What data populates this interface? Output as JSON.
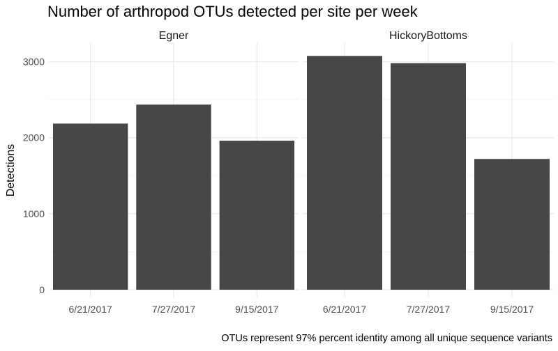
{
  "chart_data": {
    "type": "bar",
    "title": "Number of arthropod OTUs detected per site per week",
    "caption": "OTUs represent 97% percent identity among all unique sequence variants",
    "xlabel": "",
    "ylabel": "Detections",
    "ylim": [
      0,
      3250
    ],
    "yticks": [
      0,
      1000,
      2000,
      3000
    ],
    "grid": true,
    "bar_color": "#474747",
    "categories": [
      "6/21/2017",
      "7/27/2017",
      "9/15/2017"
    ],
    "facets": [
      {
        "name": "Egner",
        "values": [
          2185,
          2435,
          1960
        ]
      },
      {
        "name": "HickoryBottoms",
        "values": [
          3075,
          2980,
          1720
        ]
      }
    ]
  }
}
